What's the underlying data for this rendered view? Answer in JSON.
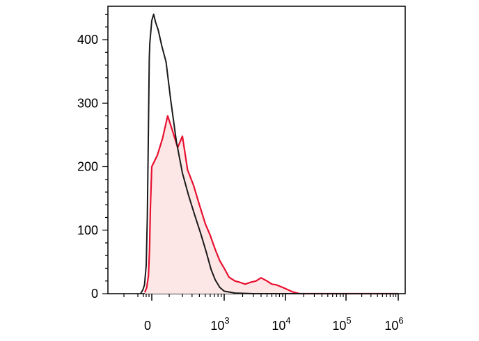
{
  "chart_data": {
    "type": "area",
    "x_scale": "biexponential",
    "xlim": [
      -1000,
      1000000
    ],
    "ylim": [
      0,
      450
    ],
    "y_ticks": [
      0,
      100,
      200,
      300,
      400
    ],
    "y_tick_labels": [
      "0",
      "100",
      "200",
      "300",
      "400"
    ],
    "x_tick_labels": [
      {
        "base": "0",
        "exp": ""
      },
      {
        "base": "10",
        "exp": "3"
      },
      {
        "base": "10",
        "exp": "4"
      },
      {
        "base": "10",
        "exp": "5"
      },
      {
        "base": "10",
        "exp": "6"
      }
    ],
    "x_tick_values": [
      0,
      1000,
      10000,
      100000,
      1000000
    ],
    "grid": false,
    "legend": "none",
    "series": [
      {
        "color": "#1a1a1a",
        "filled": false,
        "points": [
          [
            -400,
            0
          ],
          [
            -320,
            6
          ],
          [
            -260,
            14
          ],
          [
            -200,
            45
          ],
          [
            -160,
            120
          ],
          [
            -120,
            260
          ],
          [
            -90,
            370
          ],
          [
            -70,
            395
          ],
          [
            -50,
            405
          ],
          [
            -30,
            415
          ],
          [
            -10,
            425
          ],
          [
            0,
            430
          ],
          [
            10,
            440
          ],
          [
            20,
            428
          ],
          [
            35,
            415
          ],
          [
            55,
            390
          ],
          [
            80,
            365
          ],
          [
            110,
            305
          ],
          [
            150,
            240
          ],
          [
            200,
            190
          ],
          [
            260,
            155
          ],
          [
            330,
            125
          ],
          [
            420,
            95
          ],
          [
            520,
            65
          ],
          [
            620,
            38
          ],
          [
            720,
            22
          ],
          [
            850,
            10
          ],
          [
            1000,
            4
          ],
          [
            1500,
            1
          ],
          [
            3000,
            0
          ],
          [
            1000000,
            0
          ]
        ]
      },
      {
        "color": "#e8102f",
        "fill": "#fde6e6",
        "filled": true,
        "points": [
          [
            -250,
            2
          ],
          [
            -180,
            10
          ],
          [
            -120,
            28
          ],
          [
            -80,
            70
          ],
          [
            -50,
            135
          ],
          [
            -20,
            175
          ],
          [
            0,
            200
          ],
          [
            30,
            218
          ],
          [
            60,
            245
          ],
          [
            90,
            280
          ],
          [
            120,
            258
          ],
          [
            160,
            230
          ],
          [
            200,
            248
          ],
          [
            250,
            195
          ],
          [
            320,
            170
          ],
          [
            400,
            140
          ],
          [
            500,
            110
          ],
          [
            600,
            92
          ],
          [
            720,
            70
          ],
          [
            850,
            52
          ],
          [
            1000,
            40
          ],
          [
            1200,
            26
          ],
          [
            1500,
            20
          ],
          [
            1800,
            18
          ],
          [
            2200,
            15
          ],
          [
            2700,
            18
          ],
          [
            3300,
            20
          ],
          [
            4000,
            25
          ],
          [
            5000,
            20
          ],
          [
            6000,
            15
          ],
          [
            7000,
            14
          ],
          [
            8000,
            12
          ],
          [
            10000,
            8
          ],
          [
            13000,
            3
          ],
          [
            17000,
            0
          ],
          [
            1000000,
            0
          ]
        ]
      }
    ]
  }
}
